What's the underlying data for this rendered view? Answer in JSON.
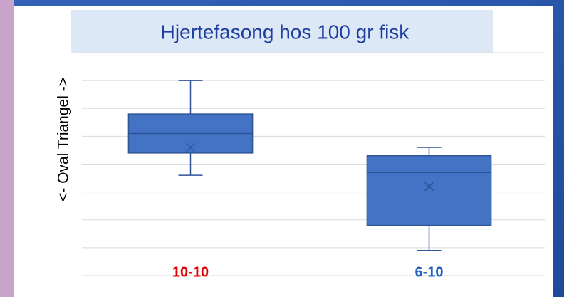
{
  "chart_data": {
    "type": "box",
    "title": "Hjertefasong hos 100 gr fisk",
    "y_label": "<- Oval  Triangel ->",
    "categories": [
      "10-10",
      "6-10"
    ],
    "category_colors": [
      "#e00000",
      "#1f5fbf"
    ],
    "boxes": [
      {
        "whisker_low": 3.6,
        "q1": 4.4,
        "median": 5.1,
        "q3": 5.8,
        "whisker_high": 7.0,
        "mean": 4.6
      },
      {
        "whisker_low": 0.9,
        "q1": 1.8,
        "median": 3.7,
        "q3": 4.3,
        "whisker_high": 4.6,
        "mean": 3.2
      }
    ],
    "color": "#4472c4",
    "ylim": [
      0,
      8
    ],
    "yticks": [
      0,
      1,
      2,
      3,
      4,
      5,
      6,
      7,
      8
    ],
    "grid": true
  }
}
